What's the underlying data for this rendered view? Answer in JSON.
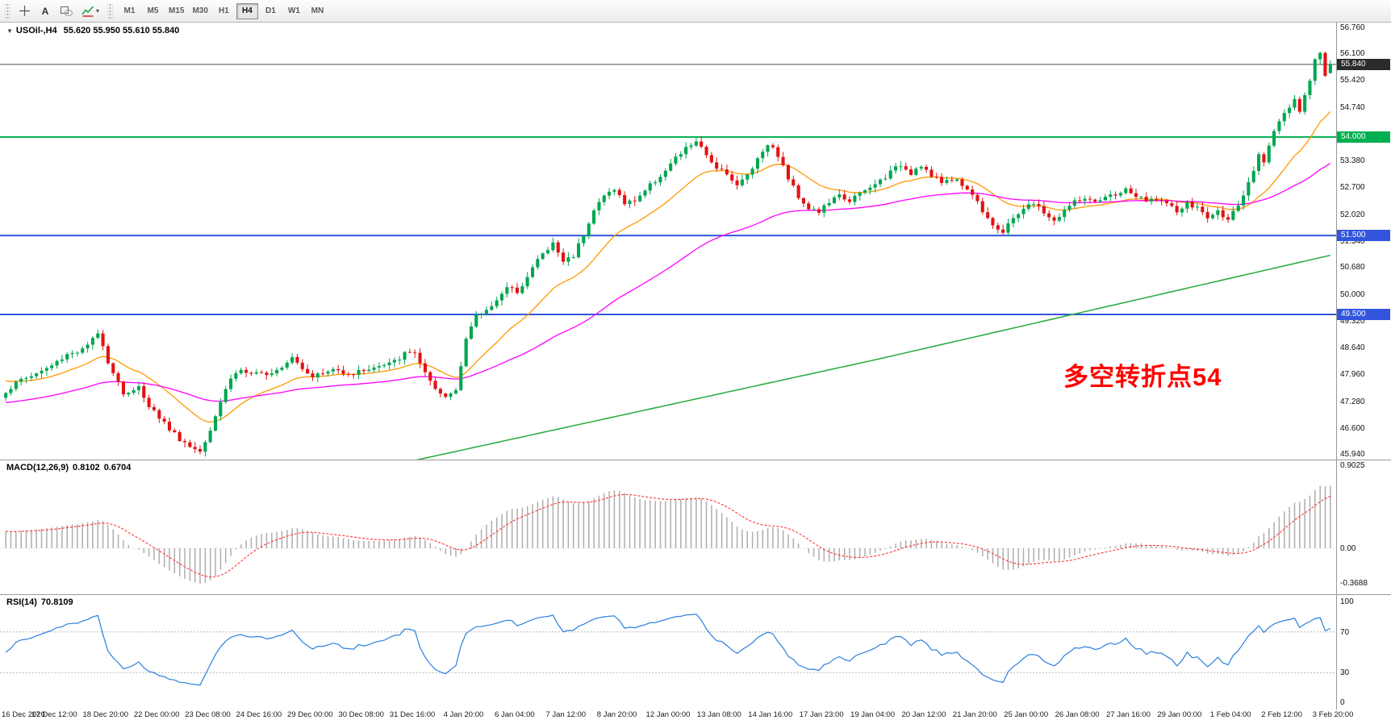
{
  "toolbar": {
    "text_tool_label": "A",
    "timeframes": [
      "M1",
      "M5",
      "M15",
      "M30",
      "H1",
      "H4",
      "D1",
      "W1",
      "MN"
    ],
    "active_timeframe": "H4"
  },
  "main_chart": {
    "symbol_title": "USOil-,H4",
    "ohlc": "55.620 55.950 55.610 55.840",
    "annotation": "多空转折点54",
    "price_axis_labels": [
      "56.760",
      "56.100",
      "55.420",
      "54.740",
      "53.380",
      "52.700",
      "52.020",
      "51.340",
      "50.680",
      "50.000",
      "49.320",
      "48.640",
      "47.960",
      "47.280",
      "46.600",
      "45.940"
    ],
    "badges": [
      {
        "value": "55.840",
        "price": 55.84,
        "type": "bid"
      },
      {
        "value": "54.000",
        "price": 54.0,
        "type": "level-green"
      },
      {
        "value": "51.500",
        "price": 51.5,
        "type": "level-blue"
      },
      {
        "value": "49.500",
        "price": 49.5,
        "type": "level-blue"
      }
    ]
  },
  "chart_data": {
    "type": "candlestick",
    "symbol": "USOil-",
    "timeframe": "H4",
    "candle_count": 260,
    "price_top": 56.9,
    "price_bottom": 45.82,
    "bid_price": 55.84,
    "last_candle": {
      "open": 55.62,
      "high": 55.95,
      "low": 55.61,
      "close": 55.84
    },
    "levels": [
      {
        "price": 54.0,
        "color": "#00b050",
        "width": 2
      },
      {
        "price": 51.5,
        "color": "#3355dd",
        "width": 2
      },
      {
        "price": 49.5,
        "color": "#3355dd",
        "width": 2
      }
    ],
    "colors": {
      "up": "#00a651",
      "down": "#e31212",
      "bid_line": "#4a4a4a"
    },
    "moving_averages": [
      {
        "name": "ma-fast",
        "period": 18,
        "color": "#ff9900",
        "seed_offset": 0.35
      },
      {
        "name": "ma-mid",
        "period": 62,
        "color": "#ff00ff",
        "seed_offset": -0.25
      }
    ],
    "ma_slow": {
      "name": "ma-slow",
      "color": "#2fae44",
      "points": [
        [
          80,
          45.8
        ],
        [
          170,
          48.35
        ],
        [
          259,
          51.0
        ]
      ]
    },
    "close_waypoints": [
      [
        0,
        47.55
      ],
      [
        3,
        47.85
      ],
      [
        6,
        48.0
      ],
      [
        9,
        48.2
      ],
      [
        12,
        48.5
      ],
      [
        15,
        48.6
      ],
      [
        17,
        48.85
      ],
      [
        18,
        49.0
      ],
      [
        19,
        48.75
      ],
      [
        20,
        48.3
      ],
      [
        22,
        47.8
      ],
      [
        23,
        47.5
      ],
      [
        25,
        47.55
      ],
      [
        26,
        47.65
      ],
      [
        28,
        47.2
      ],
      [
        30,
        46.9
      ],
      [
        32,
        46.6
      ],
      [
        34,
        46.35
      ],
      [
        36,
        46.15
      ],
      [
        38,
        46.05
      ],
      [
        40,
        46.6
      ],
      [
        42,
        47.3
      ],
      [
        44,
        47.9
      ],
      [
        46,
        48.1
      ],
      [
        48,
        47.95
      ],
      [
        50,
        48.0
      ],
      [
        52,
        48.05
      ],
      [
        54,
        48.2
      ],
      [
        56,
        48.45
      ],
      [
        58,
        48.15
      ],
      [
        60,
        47.95
      ],
      [
        62,
        48.0
      ],
      [
        64,
        48.1
      ],
      [
        66,
        48.05
      ],
      [
        68,
        48.0
      ],
      [
        70,
        48.1
      ],
      [
        72,
        48.15
      ],
      [
        74,
        48.2
      ],
      [
        76,
        48.3
      ],
      [
        78,
        48.5
      ],
      [
        80,
        48.55
      ],
      [
        82,
        48.0
      ],
      [
        84,
        47.55
      ],
      [
        86,
        47.4
      ],
      [
        88,
        47.6
      ],
      [
        90,
        48.9
      ],
      [
        92,
        49.45
      ],
      [
        94,
        49.6
      ],
      [
        96,
        49.9
      ],
      [
        98,
        50.15
      ],
      [
        100,
        50.1
      ],
      [
        102,
        50.45
      ],
      [
        104,
        50.9
      ],
      [
        106,
        51.15
      ],
      [
        107,
        51.3
      ],
      [
        109,
        50.85
      ],
      [
        111,
        51.0
      ],
      [
        113,
        51.55
      ],
      [
        115,
        52.15
      ],
      [
        117,
        52.5
      ],
      [
        119,
        52.7
      ],
      [
        121,
        52.3
      ],
      [
        123,
        52.4
      ],
      [
        125,
        52.65
      ],
      [
        127,
        52.9
      ],
      [
        129,
        53.15
      ],
      [
        131,
        53.45
      ],
      [
        133,
        53.7
      ],
      [
        135,
        53.9
      ],
      [
        137,
        53.5
      ],
      [
        139,
        53.25
      ],
      [
        141,
        53.1
      ],
      [
        143,
        52.75
      ],
      [
        145,
        53.05
      ],
      [
        147,
        53.45
      ],
      [
        149,
        53.85
      ],
      [
        151,
        53.55
      ],
      [
        153,
        52.95
      ],
      [
        155,
        52.5
      ],
      [
        157,
        52.2
      ],
      [
        159,
        52.1
      ],
      [
        161,
        52.35
      ],
      [
        163,
        52.5
      ],
      [
        165,
        52.4
      ],
      [
        167,
        52.55
      ],
      [
        169,
        52.7
      ],
      [
        171,
        52.9
      ],
      [
        173,
        53.1
      ],
      [
        175,
        53.3
      ],
      [
        177,
        53.1
      ],
      [
        179,
        53.3
      ],
      [
        181,
        53.0
      ],
      [
        183,
        52.85
      ],
      [
        185,
        52.95
      ],
      [
        187,
        52.8
      ],
      [
        189,
        52.55
      ],
      [
        191,
        52.15
      ],
      [
        193,
        51.8
      ],
      [
        195,
        51.55
      ],
      [
        197,
        51.95
      ],
      [
        199,
        52.2
      ],
      [
        201,
        52.3
      ],
      [
        203,
        52.1
      ],
      [
        205,
        51.85
      ],
      [
        207,
        52.15
      ],
      [
        209,
        52.35
      ],
      [
        211,
        52.45
      ],
      [
        213,
        52.3
      ],
      [
        215,
        52.45
      ],
      [
        217,
        52.55
      ],
      [
        219,
        52.65
      ],
      [
        221,
        52.5
      ],
      [
        223,
        52.35
      ],
      [
        225,
        52.45
      ],
      [
        227,
        52.3
      ],
      [
        229,
        52.1
      ],
      [
        231,
        52.3
      ],
      [
        233,
        52.2
      ],
      [
        235,
        51.95
      ],
      [
        237,
        52.1
      ],
      [
        239,
        51.95
      ],
      [
        241,
        52.2
      ],
      [
        243,
        52.8
      ],
      [
        245,
        53.5
      ],
      [
        246,
        53.4
      ],
      [
        248,
        54.2
      ],
      [
        250,
        54.6
      ],
      [
        252,
        54.9
      ],
      [
        253,
        54.65
      ],
      [
        255,
        55.4
      ],
      [
        256,
        56.0
      ],
      [
        257,
        56.15
      ],
      [
        258,
        55.6
      ],
      [
        259,
        55.84
      ]
    ],
    "indicators": {
      "macd": {
        "label": "MACD(12,26,9)",
        "value_main": "0.8102",
        "value_signal": "0.6704",
        "fast": 12,
        "slow": 26,
        "signal": 9,
        "axis_labels": [
          "0.9025",
          "0.00",
          "-0.3688"
        ],
        "hist_color": "#adadad",
        "signal_color": "#ff3333"
      },
      "rsi": {
        "label": "RSI(14)",
        "value": "70.8109",
        "period": 14,
        "axis_labels": [
          "100",
          "70",
          "30",
          "0"
        ],
        "levels": [
          70,
          30
        ],
        "color": "#2a7fde"
      }
    }
  },
  "time_axis": {
    "labels": [
      "16 Dec 2020",
      "17 Dec 12:00",
      "18 Dec 20:00",
      "22 Dec 00:00",
      "23 Dec 08:00",
      "24 Dec 16:00",
      "29 Dec 00:00",
      "30 Dec 08:00",
      "31 Dec 16:00",
      "4 Jan 20:00",
      "6 Jan 04:00",
      "7 Jan 12:00",
      "8 Jan 20:00",
      "12 Jan 00:00",
      "13 Jan 08:00",
      "14 Jan 16:00",
      "17 Jan 23:00",
      "19 Jan 04:00",
      "20 Jan 12:00",
      "21 Jan 20:00",
      "25 Jan 00:00",
      "26 Jan 08:00",
      "27 Jan 16:00",
      "29 Jan 00:00",
      "1 Feb 04:00",
      "2 Feb 12:00",
      "3 Feb 20:00"
    ]
  }
}
